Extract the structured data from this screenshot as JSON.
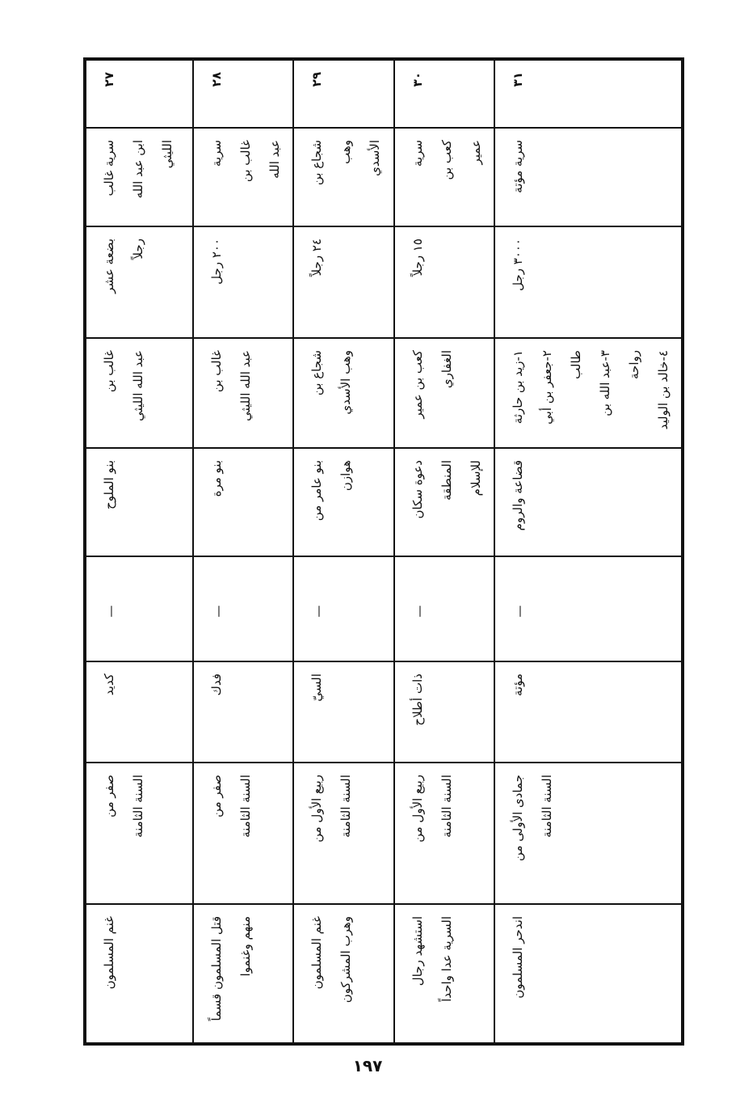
{
  "table": {
    "rows": [
      {
        "cells": [
          "٢٧",
          "سرية غالب\nابن عبد الله\nالليثي",
          "بضعة عشر\nرجلاً",
          "غالب بن\nعبد الله الليثي",
          "بنو الملوح",
          "—",
          "كديد",
          "صفر من\nالسنة الثامنة",
          "غنم المسلمون"
        ]
      },
      {
        "cells": [
          "٢٨",
          "سرية\nغالب بن\nعبد الله",
          "٢٠٠ رجل",
          "غالب بن\nعبد الله الليثي",
          "بنو مرة",
          "—",
          "فدك",
          "صفر من\nالسنة الثامنة",
          "قتل المسلمون قسماً\nمنهم وغنموا"
        ]
      },
      {
        "cells": [
          "٢٩",
          "شجاع بن\nوهب\nالأسدي",
          "٢٤ رجلاً",
          "شجاع بن\nوهب الأسدي",
          "بنو عامر من\nهوازن",
          "—",
          "السيّ",
          "ربيع الأول من\nالسنة الثامنة",
          "غنم المسلمون\nوهرب المشركون"
        ]
      },
      {
        "cells": [
          "٣٠",
          "سرية\nكعب بن\nعمير",
          "١٥ رجلاً",
          "كعب بن عمير\nالغفاري",
          "دعوة سكان\nالمنطقة\nللإسلام",
          "—",
          "ذات أطلاح",
          "ربيع الأول من\nالسنة الثامنة",
          "استشهد رجال\nالسرية عدا واحداً"
        ]
      },
      {
        "cells": [
          "٣١",
          "سرية مؤتة",
          "٣٠٠٠ رجل",
          "١-زيد بن حارثة\n٢-جعفر بن أبي\nطالب\n٣-عبد الله بن\nرواحة\n٤-خالد بن الوليد",
          "قضاعة والروم",
          "—",
          "مؤتة",
          "جمادى الأولى من\nالسنة الثامنة",
          "اندحر المسلمون"
        ]
      }
    ]
  },
  "page_number": "١٩٧"
}
